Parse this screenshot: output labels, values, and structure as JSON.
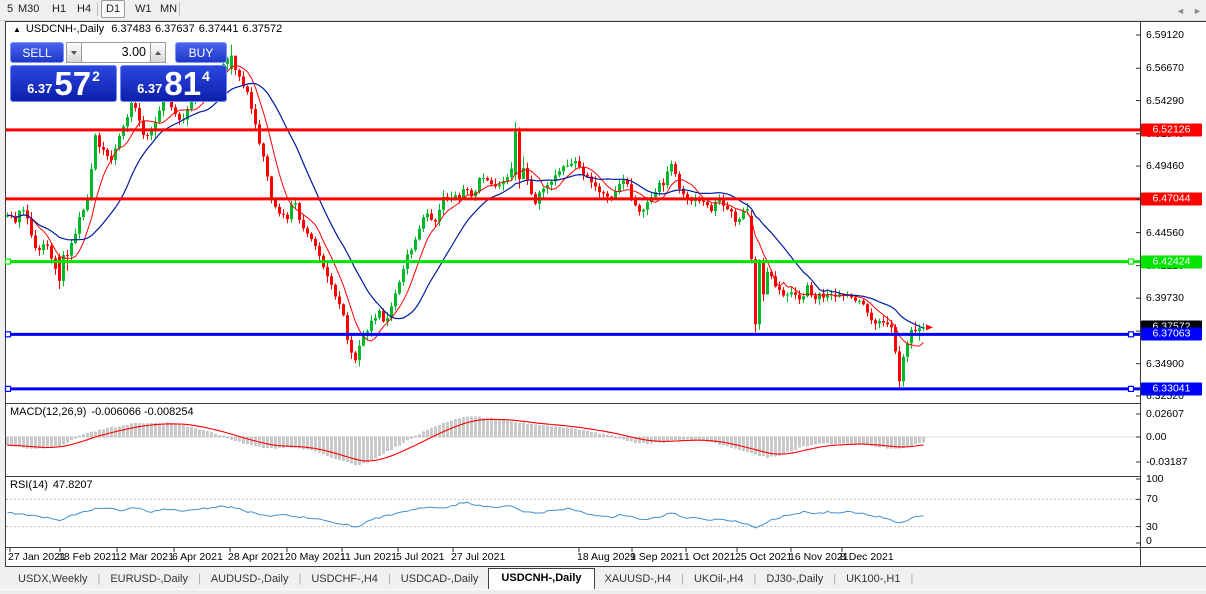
{
  "toolbar": {
    "items": [
      {
        "label": "5",
        "selected": false
      },
      {
        "label": "M30",
        "selected": false
      },
      {
        "label": "H1",
        "selected": false
      },
      {
        "label": "H4",
        "selected": false
      },
      {
        "label": "D1",
        "selected": true
      },
      {
        "label": "W1",
        "selected": false
      },
      {
        "label": "MN",
        "selected": false
      }
    ]
  },
  "chart_header": {
    "collapse_icon": "▲",
    "symbol": "USDCNH-,Daily",
    "open": "6.37483",
    "high": "6.37637",
    "low": "6.37441",
    "close": "6.37572"
  },
  "trade_panel": {
    "sell_label": "SELL",
    "buy_label": "BUY",
    "volume": "3.00",
    "sell_price_small": "6.37",
    "sell_price_big": "57",
    "sell_price_sup": "2",
    "buy_price_small": "6.37",
    "buy_price_big": "81",
    "buy_price_sup": "4"
  },
  "indicators": {
    "macd": {
      "name": "MACD(12,26,9)",
      "values": "-0.006066 -0.008254",
      "axis": [
        "0.02607",
        "0.00",
        "-0.03187"
      ]
    },
    "rsi": {
      "name": "RSI(14)",
      "value": "47.8207",
      "axis": [
        "100",
        "70",
        "30",
        "0"
      ]
    }
  },
  "tabs": {
    "active_index": 5,
    "items": [
      {
        "label": "USDX,Weekly"
      },
      {
        "label": "EURUSD-,Daily"
      },
      {
        "label": "AUDUSD-,Daily"
      },
      {
        "label": "USDCHF-,H4"
      },
      {
        "label": "USDCAD-,Daily"
      },
      {
        "label": "USDCNH-,Daily"
      },
      {
        "label": "XAUUSD-,H4"
      },
      {
        "label": "UKOil-,H4"
      },
      {
        "label": "DJ30-,Daily"
      },
      {
        "label": "UK100-,H1"
      }
    ],
    "scroll_left_icon": "◄",
    "scroll_right_icon": "►"
  },
  "colors": {
    "bull": "#00b82a",
    "bear": "#ff0000",
    "ma_fast": "#ff0000",
    "ma_slow": "#001a9e",
    "macd_hist": "#c9c9c9",
    "macd_hist_edge": "#a2a2a2",
    "macd_signal": "#ff0000",
    "rsi_line": "#4090d0",
    "level_red": "#ff0000",
    "level_green": "#00e400",
    "level_blue": "#0000ff",
    "current_label": "#000000"
  },
  "chart_data": {
    "type": "candlestick",
    "symbol": "USDCNH-",
    "timeframe": "Daily",
    "last_bar": {
      "open": 6.37483,
      "high": 6.37637,
      "low": 6.37441,
      "close": 6.37572
    },
    "price_axis_ticks": [
      6.5912,
      6.5667,
      6.5429,
      6.5184,
      6.4946,
      6.4701,
      6.4456,
      6.4212,
      6.3973,
      6.373,
      6.349,
      6.3252
    ],
    "hlines": [
      {
        "price": 6.52126,
        "color_key": "level_red",
        "selected": false
      },
      {
        "price": 6.47044,
        "color_key": "level_red",
        "selected": false
      },
      {
        "price": 6.42424,
        "color_key": "level_green",
        "selected": true
      },
      {
        "price": 6.37063,
        "color_key": "level_blue",
        "selected": true
      },
      {
        "price": 6.33041,
        "color_key": "level_blue",
        "selected": true
      }
    ],
    "current_price": 6.37572,
    "x_dates": [
      "27 Jan 2021",
      "18 Feb 2021",
      "12 Mar 2021",
      "6 Apr 2021",
      "28 Apr 2021",
      "20 May 2021",
      "11 Jun 2021",
      "5 Jul 2021",
      "27 Jul 2021",
      "18 Aug 2021",
      "9 Sep 2021",
      "1 Oct 2021",
      "25 Oct 2021",
      "16 Nov 2021",
      "8 Dec 2021"
    ],
    "close_keyframes": [
      [
        6,
        6.463
      ],
      [
        14,
        6.452
      ],
      [
        22,
        6.468
      ],
      [
        30,
        6.448
      ],
      [
        38,
        6.432
      ],
      [
        46,
        6.44
      ],
      [
        54,
        6.422
      ],
      [
        60,
        6.408
      ],
      [
        66,
        6.428
      ],
      [
        72,
        6.442
      ],
      [
        80,
        6.455
      ],
      [
        88,
        6.47
      ],
      [
        95,
        6.52
      ],
      [
        102,
        6.505
      ],
      [
        110,
        6.498
      ],
      [
        118,
        6.512
      ],
      [
        126,
        6.53
      ],
      [
        134,
        6.545
      ],
      [
        142,
        6.52
      ],
      [
        150,
        6.515
      ],
      [
        158,
        6.53
      ],
      [
        166,
        6.548
      ],
      [
        174,
        6.536
      ],
      [
        182,
        6.528
      ],
      [
        190,
        6.542
      ],
      [
        198,
        6.55
      ],
      [
        206,
        6.558
      ],
      [
        214,
        6.565
      ],
      [
        222,
        6.57
      ],
      [
        230,
        6.575
      ],
      [
        238,
        6.565
      ],
      [
        246,
        6.552
      ],
      [
        254,
        6.53
      ],
      [
        262,
        6.505
      ],
      [
        270,
        6.475
      ],
      [
        278,
        6.462
      ],
      [
        286,
        6.455
      ],
      [
        294,
        6.47
      ],
      [
        302,
        6.452
      ],
      [
        310,
        6.44
      ],
      [
        318,
        6.43
      ],
      [
        326,
        6.415
      ],
      [
        334,
        6.4
      ],
      [
        342,
        6.388
      ],
      [
        350,
        6.36
      ],
      [
        356,
        6.352
      ],
      [
        362,
        6.368
      ],
      [
        370,
        6.378
      ],
      [
        378,
        6.388
      ],
      [
        386,
        6.378
      ],
      [
        394,
        6.398
      ],
      [
        402,
        6.415
      ],
      [
        410,
        6.432
      ],
      [
        418,
        6.448
      ],
      [
        426,
        6.462
      ],
      [
        434,
        6.45
      ],
      [
        442,
        6.468
      ],
      [
        450,
        6.475
      ],
      [
        458,
        6.468
      ],
      [
        466,
        6.482
      ],
      [
        474,
        6.47
      ],
      [
        482,
        6.49
      ],
      [
        490,
        6.478
      ],
      [
        498,
        6.482
      ],
      [
        506,
        6.488
      ],
      [
        512,
        6.494
      ],
      [
        520,
        6.5
      ],
      [
        528,
        6.482
      ],
      [
        536,
        6.468
      ],
      [
        544,
        6.478
      ],
      [
        552,
        6.482
      ],
      [
        560,
        6.49
      ],
      [
        568,
        6.495
      ],
      [
        576,
        6.498
      ],
      [
        584,
        6.49
      ],
      [
        592,
        6.482
      ],
      [
        600,
        6.476
      ],
      [
        608,
        6.47
      ],
      [
        616,
        6.478
      ],
      [
        624,
        6.484
      ],
      [
        632,
        6.472
      ],
      [
        640,
        6.462
      ],
      [
        648,
        6.47
      ],
      [
        656,
        6.478
      ],
      [
        664,
        6.482
      ],
      [
        672,
        6.496
      ],
      [
        680,
        6.478
      ],
      [
        688,
        6.468
      ],
      [
        696,
        6.472
      ],
      [
        704,
        6.467
      ],
      [
        712,
        6.462
      ],
      [
        720,
        6.47
      ],
      [
        728,
        6.463
      ],
      [
        736,
        6.455
      ],
      [
        744,
        6.462
      ],
      [
        752,
        6.458
      ],
      [
        760,
        6.4
      ],
      [
        768,
        6.42
      ],
      [
        776,
        6.408
      ],
      [
        784,
        6.398
      ],
      [
        792,
        6.403
      ],
      [
        800,
        6.398
      ],
      [
        808,
        6.406
      ],
      [
        816,
        6.397
      ],
      [
        824,
        6.4
      ],
      [
        832,
        6.403
      ],
      [
        840,
        6.398
      ],
      [
        848,
        6.403
      ],
      [
        856,
        6.396
      ],
      [
        864,
        6.39
      ],
      [
        872,
        6.383
      ],
      [
        880,
        6.378
      ],
      [
        888,
        6.376
      ],
      [
        896,
        6.37
      ],
      [
        904,
        6.35
      ],
      [
        912,
        6.368
      ],
      [
        920,
        6.374
      ],
      [
        925,
        6.3757
      ]
    ],
    "forced_candles": [
      {
        "i": 13,
        "o": 6.428,
        "h": 6.43,
        "l": 6.404,
        "c": 6.41
      },
      {
        "i": 14,
        "o": 6.41,
        "h": 6.432,
        "l": 6.406,
        "c": 6.429
      },
      {
        "i": 56,
        "o": 6.566,
        "h": 6.584,
        "l": 6.562,
        "c": 6.576
      },
      {
        "i": 127,
        "o": 6.488,
        "h": 6.527,
        "l": 6.484,
        "c": 6.52
      },
      {
        "i": 128,
        "o": 6.52,
        "h": 6.523,
        "l": 6.478,
        "c": 6.485
      },
      {
        "i": 186,
        "o": 6.458,
        "h": 6.462,
        "l": 6.423,
        "c": 6.426
      },
      {
        "i": 187,
        "o": 6.426,
        "h": 6.428,
        "l": 6.372,
        "c": 6.378
      },
      {
        "i": 188,
        "o": 6.378,
        "h": 6.426,
        "l": 6.374,
        "c": 6.424
      },
      {
        "i": 189,
        "o": 6.424,
        "h": 6.427,
        "l": 6.395,
        "c": 6.4
      },
      {
        "i": 222,
        "o": 6.376,
        "h": 6.378,
        "l": 6.356,
        "c": 6.358
      },
      {
        "i": 223,
        "o": 6.358,
        "h": 6.362,
        "l": 6.3304,
        "c": 6.336
      },
      {
        "i": 224,
        "o": 6.336,
        "h": 6.356,
        "l": 6.332,
        "c": 6.354
      },
      {
        "i": 225,
        "o": 6.354,
        "h": 6.366,
        "l": 6.35,
        "c": 6.364
      },
      {
        "i": 226,
        "o": 6.364,
        "h": 6.376,
        "l": 6.36,
        "c": 6.374
      },
      {
        "i": 227,
        "o": 6.374,
        "h": 6.38,
        "l": 6.37,
        "c": 6.373
      },
      {
        "i": 228,
        "o": 6.373,
        "h": 6.378,
        "l": 6.366,
        "c": 6.375
      },
      {
        "i": 229,
        "o": 6.375,
        "h": 6.379,
        "l": 6.373,
        "c": 6.3757
      }
    ],
    "macd": {
      "params": "12,26,9",
      "last_main": -0.006066,
      "last_signal": -0.008254,
      "axis_max": 0.02607,
      "axis_min": -0.03187,
      "main_keyframes": [
        [
          6,
          -0.009
        ],
        [
          25,
          -0.012
        ],
        [
          45,
          -0.013
        ],
        [
          60,
          -0.009
        ],
        [
          75,
          -0.002
        ],
        [
          90,
          0.005
        ],
        [
          105,
          0.009
        ],
        [
          120,
          0.012
        ],
        [
          135,
          0.015
        ],
        [
          150,
          0.016
        ],
        [
          165,
          0.016
        ],
        [
          180,
          0.014
        ],
        [
          195,
          0.01
        ],
        [
          210,
          0.005
        ],
        [
          225,
          0.0
        ],
        [
          240,
          -0.006
        ],
        [
          255,
          -0.01
        ],
        [
          270,
          -0.013
        ],
        [
          285,
          -0.011
        ],
        [
          300,
          -0.012
        ],
        [
          315,
          -0.016
        ],
        [
          330,
          -0.022
        ],
        [
          345,
          -0.028
        ],
        [
          358,
          -0.0318
        ],
        [
          370,
          -0.027
        ],
        [
          382,
          -0.02
        ],
        [
          394,
          -0.012
        ],
        [
          406,
          -0.005
        ],
        [
          418,
          0.002
        ],
        [
          430,
          0.009
        ],
        [
          442,
          0.015
        ],
        [
          455,
          0.02
        ],
        [
          468,
          0.023
        ],
        [
          480,
          0.022
        ],
        [
          495,
          0.02
        ],
        [
          510,
          0.018
        ],
        [
          525,
          0.015
        ],
        [
          540,
          0.013
        ],
        [
          555,
          0.012
        ],
        [
          570,
          0.01
        ],
        [
          585,
          0.007
        ],
        [
          600,
          0.004
        ],
        [
          612,
          0.001
        ],
        [
          624,
          -0.003
        ],
        [
          636,
          -0.006
        ],
        [
          648,
          -0.007
        ],
        [
          660,
          -0.006
        ],
        [
          672,
          -0.004
        ],
        [
          684,
          -0.003
        ],
        [
          696,
          -0.003
        ],
        [
          708,
          -0.005
        ],
        [
          720,
          -0.008
        ],
        [
          732,
          -0.012
        ],
        [
          744,
          -0.016
        ],
        [
          756,
          -0.02
        ],
        [
          768,
          -0.023
        ],
        [
          778,
          -0.021
        ],
        [
          790,
          -0.016
        ],
        [
          802,
          -0.011
        ],
        [
          814,
          -0.008
        ],
        [
          826,
          -0.007
        ],
        [
          838,
          -0.008
        ],
        [
          850,
          -0.007
        ],
        [
          862,
          -0.008
        ],
        [
          874,
          -0.01
        ],
        [
          886,
          -0.012
        ],
        [
          898,
          -0.013
        ],
        [
          908,
          -0.01
        ],
        [
          918,
          -0.007
        ],
        [
          925,
          -0.006
        ]
      ]
    },
    "rsi": {
      "period": 14,
      "last": 47.8207,
      "levels": [
        70,
        30
      ],
      "keyframes": [
        [
          6,
          52
        ],
        [
          25,
          47
        ],
        [
          45,
          43
        ],
        [
          60,
          40
        ],
        [
          75,
          48
        ],
        [
          90,
          55
        ],
        [
          105,
          58
        ],
        [
          120,
          54
        ],
        [
          135,
          58
        ],
        [
          150,
          52
        ],
        [
          165,
          55
        ],
        [
          180,
          53
        ],
        [
          195,
          56
        ],
        [
          210,
          58
        ],
        [
          225,
          60
        ],
        [
          240,
          55
        ],
        [
          255,
          50
        ],
        [
          270,
          46
        ],
        [
          285,
          48
        ],
        [
          300,
          44
        ],
        [
          315,
          42
        ],
        [
          330,
          38
        ],
        [
          345,
          33
        ],
        [
          358,
          30
        ],
        [
          370,
          40
        ],
        [
          382,
          44
        ],
        [
          394,
          48
        ],
        [
          406,
          52
        ],
        [
          418,
          56
        ],
        [
          430,
          60
        ],
        [
          442,
          58
        ],
        [
          455,
          62
        ],
        [
          468,
          66
        ],
        [
          480,
          60
        ],
        [
          495,
          58
        ],
        [
          510,
          62
        ],
        [
          525,
          52
        ],
        [
          540,
          50
        ],
        [
          555,
          54
        ],
        [
          570,
          56
        ],
        [
          585,
          50
        ],
        [
          600,
          46
        ],
        [
          612,
          44
        ],
        [
          624,
          48
        ],
        [
          636,
          42
        ],
        [
          648,
          40
        ],
        [
          660,
          44
        ],
        [
          672,
          50
        ],
        [
          684,
          44
        ],
        [
          696,
          42
        ],
        [
          708,
          40
        ],
        [
          720,
          42
        ],
        [
          732,
          38
        ],
        [
          744,
          35
        ],
        [
          756,
          28
        ],
        [
          768,
          38
        ],
        [
          780,
          44
        ],
        [
          792,
          48
        ],
        [
          804,
          52
        ],
        [
          816,
          48
        ],
        [
          828,
          52
        ],
        [
          840,
          50
        ],
        [
          852,
          52
        ],
        [
          864,
          48
        ],
        [
          876,
          45
        ],
        [
          888,
          42
        ],
        [
          900,
          34
        ],
        [
          908,
          40
        ],
        [
          916,
          46
        ],
        [
          925,
          47.8
        ]
      ]
    }
  }
}
